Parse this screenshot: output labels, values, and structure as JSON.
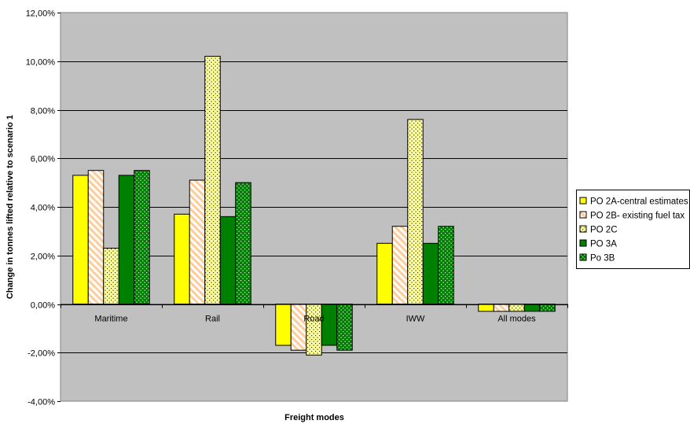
{
  "chart_data": {
    "type": "bar",
    "title": "",
    "xlabel": "Freight modes",
    "ylabel": "Change in tonnes lifted relative to scenario 1",
    "categories": [
      "Maritime",
      "Rail",
      "Road",
      "IWW",
      "All modes"
    ],
    "ylim": [
      -0.04,
      0.12
    ],
    "ytick_step": 0.02,
    "ytick_labels": [
      "-4,00%",
      "-2,00%",
      "0,00%",
      "2,00%",
      "4,00%",
      "6,00%",
      "8,00%",
      "10,00%",
      "12,00%"
    ],
    "grid": true,
    "plot_background": "#c0c0c0",
    "legend_position": "right",
    "series": [
      {
        "name": "PO 2A-central estimates",
        "color": "#ffff00",
        "pattern": "solid",
        "values": [
          0.053,
          0.037,
          -0.017,
          0.025,
          -0.003
        ]
      },
      {
        "name": "PO 2B- existing fuel tax",
        "color": "#ffcc99",
        "pattern": "diagonal-stripes",
        "values": [
          0.055,
          0.051,
          -0.019,
          0.032,
          -0.003
        ]
      },
      {
        "name": "PO 2C",
        "color": "#ffff99",
        "pattern": "dots",
        "values": [
          0.023,
          0.102,
          -0.021,
          0.076,
          -0.003
        ]
      },
      {
        "name": "PO 3A",
        "color": "#008000",
        "pattern": "solid",
        "values": [
          0.053,
          0.036,
          -0.017,
          0.025,
          -0.003
        ]
      },
      {
        "name": "Po 3B",
        "color": "#008000",
        "pattern": "dots",
        "values": [
          0.055,
          0.05,
          -0.019,
          0.032,
          -0.003
        ]
      }
    ]
  }
}
